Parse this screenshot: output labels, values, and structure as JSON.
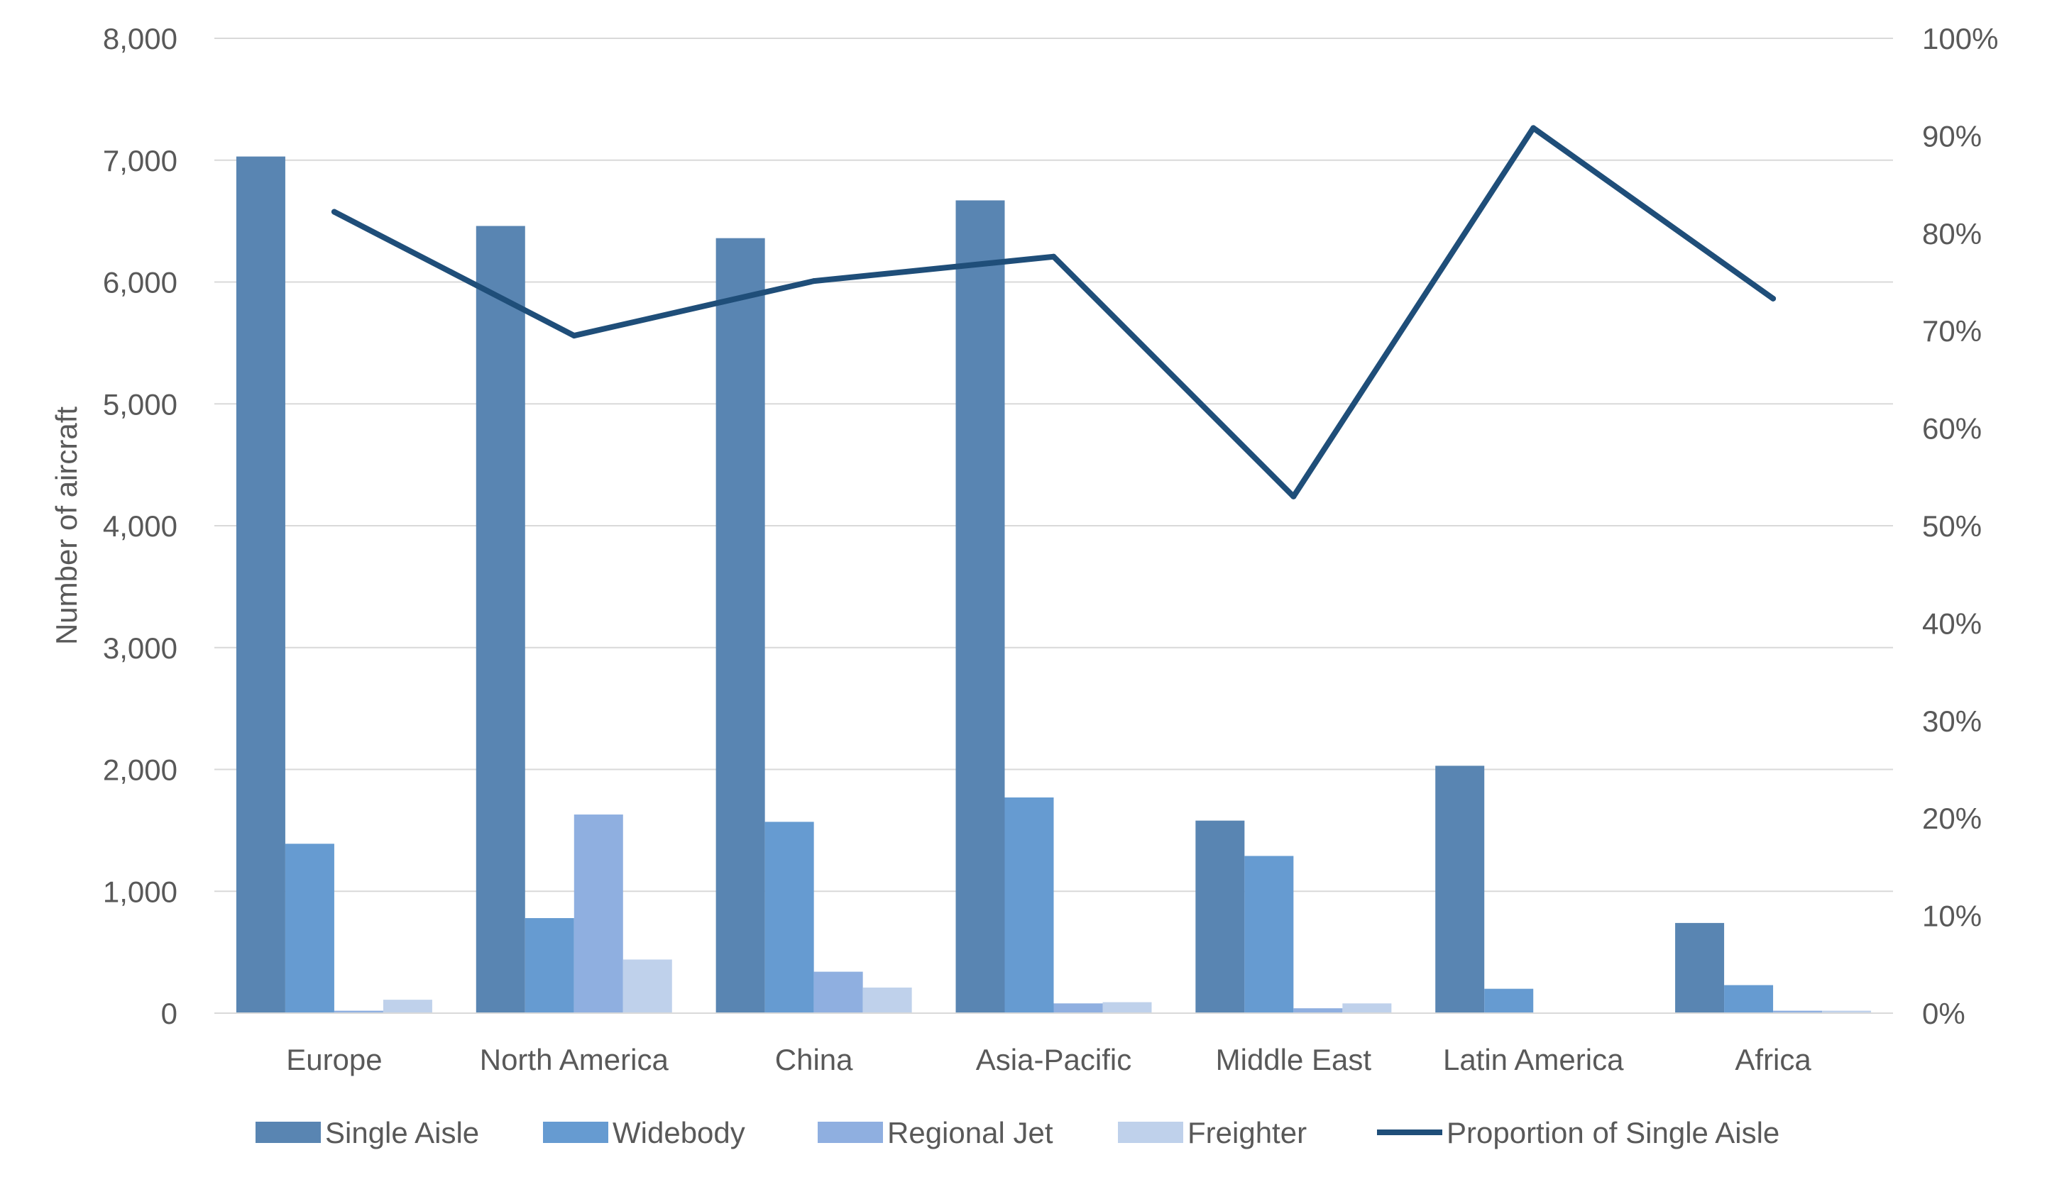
{
  "chart_data": {
    "type": "bar",
    "title": "",
    "categories": [
      "Europe",
      "North America",
      "China",
      "Asia-Pacific",
      "Middle East",
      "Latin America",
      "Africa"
    ],
    "series": [
      {
        "name": "Single Aisle",
        "type": "bar",
        "axis": "left",
        "color": "#5985b2",
        "values": [
          7030,
          6460,
          6360,
          6670,
          1580,
          2030,
          740
        ]
      },
      {
        "name": "Widebody",
        "type": "bar",
        "axis": "left",
        "color": "#669bd1",
        "values": [
          1390,
          780,
          1570,
          1770,
          1290,
          200,
          230
        ]
      },
      {
        "name": "Regional Jet",
        "type": "bar",
        "axis": "left",
        "color": "#8fafe0",
        "values": [
          20,
          1630,
          340,
          80,
          40,
          0,
          20
        ]
      },
      {
        "name": "Freighter",
        "type": "bar",
        "axis": "left",
        "color": "#bfd1eb",
        "values": [
          110,
          440,
          210,
          90,
          80,
          0,
          20
        ]
      },
      {
        "name": "Proportion of Single Aisle",
        "type": "line",
        "axis": "right",
        "color": "#1f4e79",
        "values": [
          82.2,
          69.5,
          75.1,
          77.6,
          53.0,
          90.8,
          73.3
        ]
      }
    ],
    "ylabel": "Number of aircraft",
    "ylim": [
      0,
      8000
    ],
    "y_ticks": [
      "0",
      "1,000",
      "2,000",
      "3,000",
      "4,000",
      "5,000",
      "6,000",
      "7,000",
      "8,000"
    ],
    "y2lim": [
      0,
      100
    ],
    "y2_ticks": [
      "0%",
      "10%",
      "20%",
      "30%",
      "40%",
      "50%",
      "60%",
      "70%",
      "80%",
      "90%",
      "100%"
    ],
    "grid": true,
    "legend_position": "bottom"
  }
}
